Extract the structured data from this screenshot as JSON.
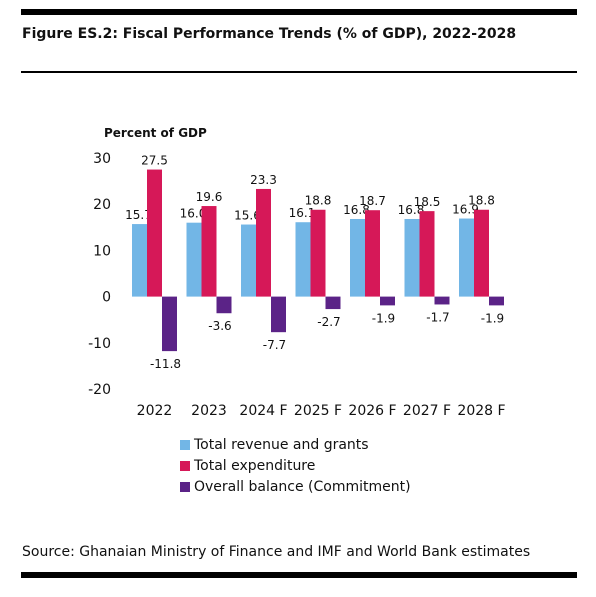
{
  "figure_title": "Figure ES.2: Fiscal Performance Trends (% of GDP), 2022-2028",
  "source_note": "Source:  Ghanaian Ministry of Finance and IMF and World Bank estimates",
  "chart_data": {
    "type": "bar",
    "title": "Figure ES.2: Fiscal Performance Trends (% of GDP), 2022-2028",
    "ylabel": "Percent of GDP",
    "xlabel": "",
    "ylim": [
      -20,
      30
    ],
    "yticks": [
      30,
      20,
      10,
      0,
      -10,
      -20
    ],
    "grid": false,
    "legend_position": "bottom",
    "categories": [
      "2022",
      "2023",
      "2024 F",
      "2025 F",
      "2026 F",
      "2027 F",
      "2028 F"
    ],
    "series": [
      {
        "name": "Total revenue and grants",
        "color": "#72b6e6",
        "values": [
          15.7,
          16.0,
          15.6,
          16.1,
          16.8,
          16.8,
          16.9
        ]
      },
      {
        "name": "Total expenditure",
        "color": "#d61858",
        "values": [
          27.5,
          19.6,
          23.3,
          18.8,
          18.7,
          18.5,
          18.8
        ]
      },
      {
        "name": "Overall balance (Commitment)",
        "color": "#5b2387",
        "values": [
          -11.8,
          -3.6,
          -7.7,
          -2.7,
          -1.9,
          -1.7,
          -1.9
        ]
      }
    ]
  }
}
